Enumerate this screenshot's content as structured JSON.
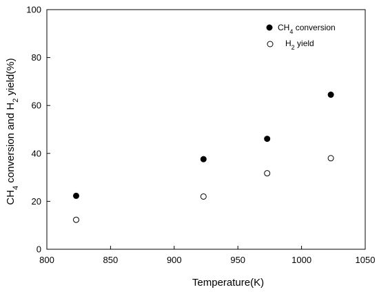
{
  "chart_data": {
    "type": "scatter",
    "xlabel": "Temperature(K)",
    "ylabel": {
      "part1": "CH",
      "sub1": "4",
      "part2": " conversion  and H",
      "sub2": "2",
      "part3": " yield(%)"
    },
    "xlim": [
      800,
      1050
    ],
    "ylim": [
      0,
      100
    ],
    "xticks": [
      800,
      850,
      900,
      950,
      1000,
      1050
    ],
    "yticks": [
      0,
      20,
      40,
      60,
      80,
      100
    ],
    "grid": false,
    "legend_position": "top-right",
    "series": [
      {
        "key": "ch4",
        "name_main": "CH",
        "name_sub": "4",
        "name_rest": " conversion",
        "marker": "filled-circle",
        "color": "#000000",
        "points": [
          {
            "x": 823,
            "y": 22.3
          },
          {
            "x": 923,
            "y": 37.6
          },
          {
            "x": 973,
            "y": 46.1
          },
          {
            "x": 1023,
            "y": 64.5
          }
        ]
      },
      {
        "key": "h2",
        "name_main": "H",
        "name_sub": "2",
        "name_rest": " yield",
        "marker": "open-circle",
        "color": "#000000",
        "points": [
          {
            "x": 823,
            "y": 12.3
          },
          {
            "x": 923,
            "y": 22.0
          },
          {
            "x": 973,
            "y": 31.7
          },
          {
            "x": 1023,
            "y": 38.0
          }
        ]
      }
    ]
  }
}
